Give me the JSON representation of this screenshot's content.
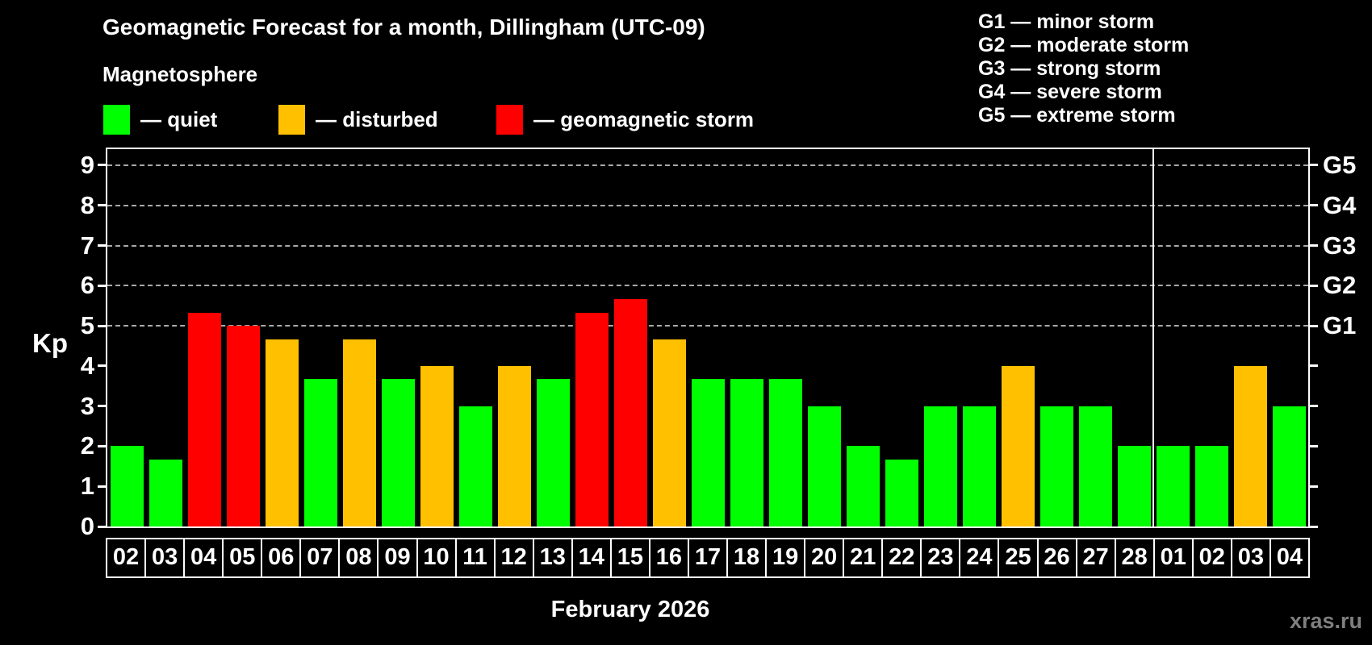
{
  "title": "Geomagnetic Forecast for a month, Dillingham (UTC-09)",
  "subtitle": "Magnetosphere",
  "legend": {
    "items": [
      {
        "status": "quiet",
        "label": "— quiet",
        "color": "#00ff00"
      },
      {
        "status": "disturbed",
        "label": "— disturbed",
        "color": "#ffc000"
      },
      {
        "status": "storm",
        "label": "— geomagnetic storm",
        "color": "#ff0000"
      }
    ]
  },
  "storm_scale": [
    "G1 — minor storm",
    "G2 — moderate storm",
    "G3 — strong storm",
    "G4 — severe storm",
    "G5 — extreme storm"
  ],
  "month_label": "February 2026",
  "watermark": "xras.ru",
  "chart_data": {
    "type": "bar",
    "title": "Geomagnetic Forecast for a month, Dillingham (UTC-09)",
    "subtitle": "Magnetosphere",
    "ylabel": "Kp",
    "xlabel": "February 2026",
    "ylim": [
      0,
      9.4
    ],
    "y_ticks": [
      0,
      1,
      2,
      3,
      4,
      5,
      6,
      7,
      8,
      9
    ],
    "grid": "dashed horizontal lines at Kp 5-9 only",
    "grid_levels": [
      5,
      6,
      7,
      8,
      9
    ],
    "right_axis": [
      {
        "label": "G5",
        "kp": 9
      },
      {
        "label": "G4",
        "kp": 8
      },
      {
        "label": "G3",
        "kp": 7
      },
      {
        "label": "G2",
        "kp": 6
      },
      {
        "label": "G1",
        "kp": 5
      }
    ],
    "legend_position": "top-left",
    "categories": [
      "02",
      "03",
      "04",
      "05",
      "06",
      "07",
      "08",
      "09",
      "10",
      "11",
      "12",
      "13",
      "14",
      "15",
      "16",
      "17",
      "18",
      "19",
      "20",
      "21",
      "22",
      "23",
      "24",
      "25",
      "26",
      "27",
      "28",
      "01",
      "02",
      "03",
      "04"
    ],
    "values": [
      2,
      1.67,
      5.33,
      5,
      4.67,
      3.67,
      4.67,
      3.67,
      4,
      3,
      4,
      3.67,
      5.33,
      5.67,
      4.67,
      3.67,
      3.67,
      3.67,
      3,
      2,
      1.67,
      3,
      3,
      4,
      3,
      3,
      2,
      2,
      2,
      4,
      3
    ],
    "statuses": [
      "quiet",
      "quiet",
      "storm",
      "storm",
      "disturbed",
      "quiet",
      "disturbed",
      "quiet",
      "disturbed",
      "quiet",
      "disturbed",
      "quiet",
      "storm",
      "storm",
      "disturbed",
      "quiet",
      "quiet",
      "quiet",
      "quiet",
      "quiet",
      "quiet",
      "quiet",
      "quiet",
      "disturbed",
      "quiet",
      "quiet",
      "quiet",
      "quiet",
      "quiet",
      "disturbed",
      "quiet"
    ],
    "status_colors": {
      "quiet": "#00ff00",
      "disturbed": "#ffc000",
      "storm": "#ff0000"
    },
    "month_separator_after_index": 26
  }
}
